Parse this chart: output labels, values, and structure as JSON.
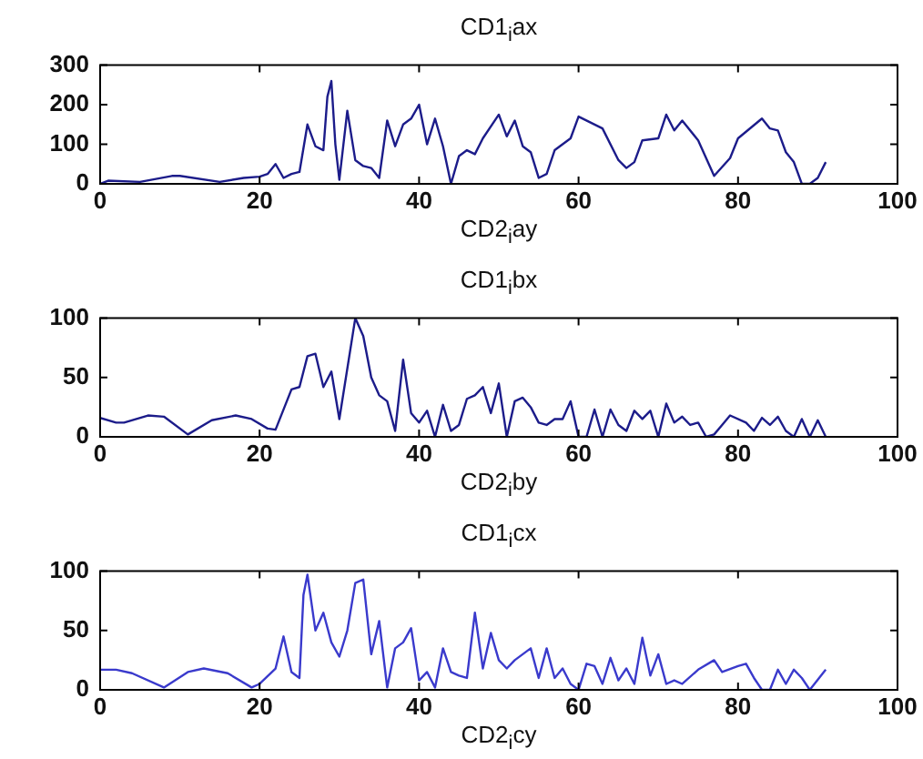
{
  "chart_data": [
    {
      "type": "line",
      "title": "CD1$_{i}$ax",
      "xlabel": "CD2$_{i}$ay",
      "grid": false,
      "marker": "none",
      "line_style": "solid",
      "xlim": [
        0,
        100
      ],
      "xticks": [
        0,
        20,
        40,
        60,
        80,
        100
      ],
      "ylim": [
        0,
        300
      ],
      "yticks": [
        0,
        100,
        200,
        300
      ],
      "color": "#1c1c8a",
      "x": [
        0,
        1,
        5,
        9,
        10,
        15,
        18,
        20,
        21,
        22,
        23,
        24,
        25,
        26,
        27,
        28,
        28.5,
        29,
        29.5,
        30,
        31,
        32,
        33,
        34,
        35,
        36,
        37,
        38,
        39,
        40,
        41,
        42,
        43,
        44,
        45,
        46,
        47,
        48,
        50,
        51,
        52,
        53,
        54,
        55,
        56,
        57,
        59,
        60,
        63,
        65,
        66,
        67,
        68,
        70,
        71,
        72,
        73,
        75,
        77,
        79,
        80,
        83,
        84,
        85,
        86,
        87,
        88,
        89,
        90,
        91
      ],
      "values": [
        0,
        8,
        5,
        20,
        20,
        5,
        15,
        18,
        25,
        50,
        15,
        25,
        30,
        150,
        95,
        85,
        220,
        260,
        100,
        10,
        185,
        60,
        45,
        40,
        15,
        160,
        95,
        150,
        165,
        200,
        100,
        165,
        95,
        0,
        70,
        85,
        75,
        115,
        175,
        120,
        160,
        95,
        80,
        15,
        25,
        85,
        115,
        170,
        140,
        60,
        40,
        55,
        110,
        115,
        175,
        135,
        160,
        110,
        20,
        65,
        115,
        165,
        140,
        135,
        80,
        55,
        0,
        0,
        15,
        55
      ]
    },
    {
      "type": "line",
      "title": "CD1$_{i}$bx",
      "xlabel": "CD2$_{i}$by",
      "grid": false,
      "marker": "none",
      "line_style": "solid",
      "xlim": [
        0,
        100
      ],
      "xticks": [
        0,
        20,
        40,
        60,
        80,
        100
      ],
      "ylim": [
        0,
        100
      ],
      "yticks": [
        0,
        50,
        100
      ],
      "color": "#1c1c8a",
      "x": [
        0,
        2,
        3,
        6,
        8,
        11,
        14,
        17,
        19,
        21,
        22,
        24,
        25,
        26,
        27,
        28,
        29,
        30,
        32,
        33,
        34,
        35,
        36,
        37,
        38,
        39,
        40,
        41,
        42,
        43,
        44,
        45,
        46,
        47,
        48,
        49,
        50,
        51,
        52,
        53,
        54,
        55,
        56,
        57,
        58,
        59,
        60,
        61,
        62,
        63,
        64,
        65,
        66,
        67,
        68,
        69,
        70,
        71,
        72,
        73,
        74,
        75,
        76,
        77,
        78,
        79,
        81,
        82,
        83,
        84,
        85,
        86,
        87,
        88,
        89,
        90,
        91
      ],
      "values": [
        16,
        12,
        12,
        18,
        17,
        2,
        14,
        18,
        15,
        7,
        6,
        40,
        42,
        68,
        70,
        42,
        55,
        15,
        100,
        85,
        50,
        35,
        30,
        5,
        65,
        20,
        12,
        22,
        0,
        27,
        5,
        10,
        32,
        35,
        42,
        20,
        45,
        0,
        30,
        33,
        25,
        12,
        10,
        15,
        15,
        30,
        0,
        0,
        23,
        0,
        23,
        10,
        5,
        22,
        15,
        22,
        0,
        28,
        12,
        17,
        10,
        12,
        0,
        2,
        10,
        18,
        12,
        5,
        16,
        10,
        17,
        5,
        0,
        15,
        0,
        14,
        0
      ]
    },
    {
      "type": "line",
      "title": "CD1$_{i}$cx",
      "xlabel": "CD2$_{i}$cy",
      "grid": false,
      "marker": "none",
      "line_style": "solid",
      "xlim": [
        0,
        100
      ],
      "xticks": [
        0,
        20,
        40,
        60,
        80,
        100
      ],
      "ylim": [
        0,
        100
      ],
      "yticks": [
        0,
        50,
        100
      ],
      "color": "#3a3acc",
      "x": [
        0,
        2,
        4,
        8,
        11,
        13,
        16,
        19,
        20,
        22,
        23,
        24,
        25,
        25.5,
        26,
        27,
        28,
        29,
        30,
        31,
        32,
        33,
        34,
        35,
        36,
        37,
        38,
        39,
        40,
        41,
        42,
        43,
        44,
        45,
        46,
        47,
        48,
        49,
        50,
        51,
        52,
        54,
        55,
        56,
        57,
        58,
        59,
        60,
        61,
        62,
        63,
        64,
        65,
        66,
        67,
        68,
        69,
        70,
        71,
        72,
        73,
        75,
        77,
        78,
        80,
        81,
        82,
        83,
        84,
        85,
        86,
        87,
        88,
        89,
        91
      ],
      "values": [
        17,
        17,
        14,
        2,
        15,
        18,
        14,
        2,
        5,
        18,
        45,
        15,
        10,
        80,
        97,
        50,
        65,
        40,
        28,
        50,
        90,
        93,
        30,
        58,
        2,
        35,
        40,
        52,
        8,
        15,
        2,
        35,
        15,
        12,
        10,
        65,
        18,
        48,
        25,
        18,
        25,
        35,
        10,
        35,
        10,
        18,
        5,
        0,
        22,
        20,
        5,
        27,
        8,
        18,
        5,
        44,
        12,
        30,
        5,
        8,
        5,
        17,
        25,
        15,
        20,
        22,
        10,
        0,
        0,
        17,
        5,
        17,
        10,
        0,
        17
      ]
    }
  ]
}
